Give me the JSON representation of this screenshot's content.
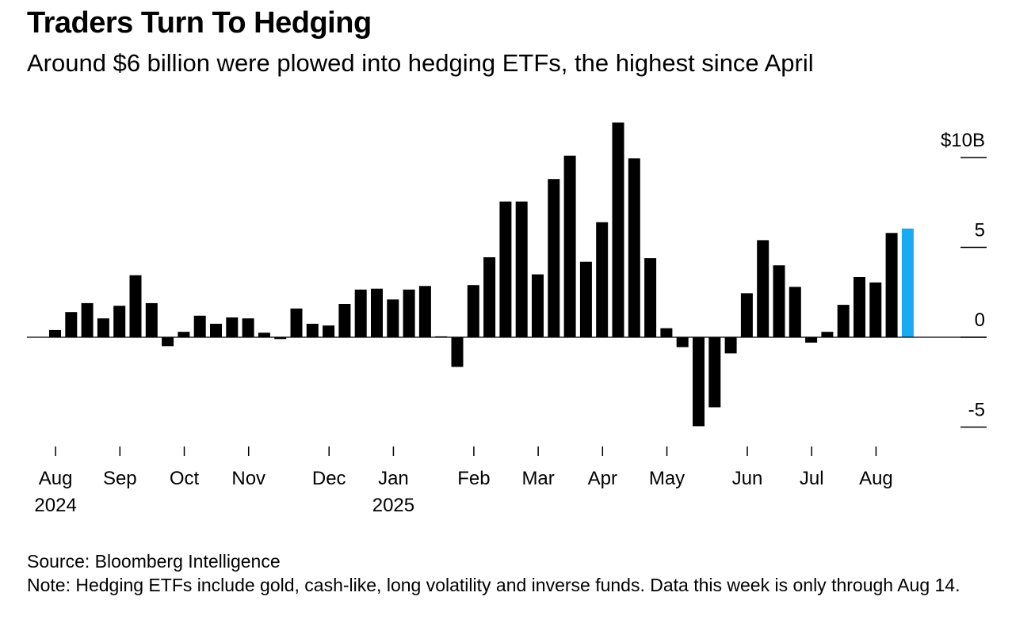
{
  "title": "Traders Turn To Hedging",
  "subtitle": "Around $6 billion were plowed into hedging ETFs, the highest since April",
  "source": "Source: Bloomberg Intelligence",
  "note": "Note: Hedging ETFs include gold, cash-like, long volatility and inverse funds. Data this week is only through Aug 14.",
  "chart_data": {
    "type": "bar",
    "title": "Traders Turn To Hedging",
    "subtitle": "Around $6 billion were plowed into hedging ETFs, the highest since April",
    "ylabel": "",
    "ylim": [
      -6.2,
      12
    ],
    "y_ticks": [
      {
        "value": 10,
        "label": "$10B"
      },
      {
        "value": 5,
        "label": "5"
      },
      {
        "value": 0,
        "label": "0"
      },
      {
        "value": -5,
        "label": "-5"
      }
    ],
    "x_ticks": [
      {
        "label": "Aug",
        "sub": "2024",
        "pos": 0.4
      },
      {
        "label": "Sep",
        "sub": "",
        "pos": 4.4
      },
      {
        "label": "Oct",
        "sub": "",
        "pos": 8.4
      },
      {
        "label": "Nov",
        "sub": "",
        "pos": 12.4
      },
      {
        "label": "Dec",
        "sub": "",
        "pos": 17.4
      },
      {
        "label": "Jan",
        "sub": "2025",
        "pos": 21.4
      },
      {
        "label": "Feb",
        "sub": "",
        "pos": 26.4
      },
      {
        "label": "Mar",
        "sub": "",
        "pos": 30.4
      },
      {
        "label": "Apr",
        "sub": "",
        "pos": 34.4
      },
      {
        "label": "May",
        "sub": "",
        "pos": 38.4
      },
      {
        "label": "Jun",
        "sub": "",
        "pos": 43.4
      },
      {
        "label": "Jul",
        "sub": "",
        "pos": 47.4
      },
      {
        "label": "Aug",
        "sub": "",
        "pos": 51.4
      }
    ],
    "values": [
      0.4,
      1.4,
      1.9,
      1.05,
      1.75,
      3.45,
      1.9,
      -0.5,
      0.3,
      1.2,
      0.75,
      1.1,
      1.05,
      0.25,
      -0.1,
      1.6,
      0.75,
      0.65,
      1.85,
      2.65,
      2.7,
      2.1,
      2.65,
      2.85,
      0.05,
      -1.65,
      2.9,
      4.45,
      7.55,
      7.55,
      3.5,
      8.8,
      10.1,
      4.2,
      6.4,
      11.95,
      9.95,
      4.4,
      0.5,
      -0.55,
      -4.95,
      -3.9,
      -0.9,
      2.45,
      5.4,
      4.0,
      2.8,
      -0.3,
      0.3,
      1.8,
      3.35,
      3.05,
      5.8,
      6.05
    ],
    "colors": {
      "bar": "#000000",
      "highlight": "#1aaaf0"
    },
    "highlight_last": true,
    "grid": false
  }
}
